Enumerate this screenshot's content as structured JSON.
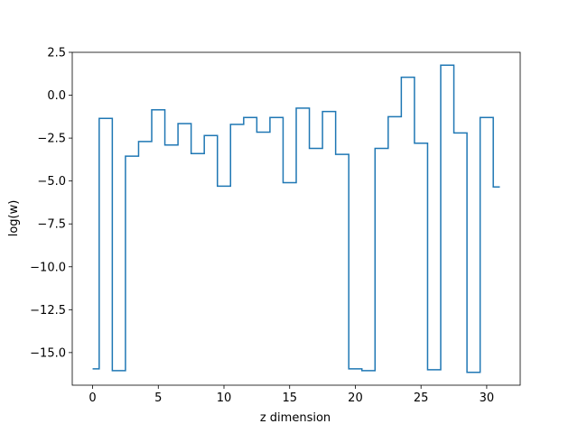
{
  "chart_data": {
    "type": "line",
    "drawstyle": "steps-mid",
    "title": "",
    "xlabel": "z dimension",
    "ylabel": "log(w)",
    "xlim": [
      -1.55,
      32.55
    ],
    "ylim": [
      -16.9,
      2.5
    ],
    "grid": false,
    "xticks": [
      0,
      5,
      10,
      15,
      20,
      25,
      30
    ],
    "xtick_labels": [
      "0",
      "5",
      "10",
      "15",
      "20",
      "25",
      "30"
    ],
    "yticks": [
      2.5,
      0.0,
      -2.5,
      -5.0,
      -7.5,
      -10.0,
      -12.5,
      -15.0
    ],
    "ytick_labels": [
      "2.5",
      "0.0",
      "−2.5",
      "−5.0",
      "−7.5",
      "−10.0",
      "−12.5",
      "−15.0"
    ],
    "series": [
      {
        "color": "#1f77b4",
        "x": [
          0,
          1,
          2,
          3,
          4,
          5,
          6,
          7,
          8,
          9,
          10,
          11,
          12,
          13,
          14,
          15,
          16,
          17,
          18,
          19,
          20,
          21,
          22,
          23,
          24,
          25,
          26,
          27,
          28,
          29,
          30,
          31
        ],
        "y": [
          -15.95,
          -1.35,
          -16.05,
          -3.55,
          -2.7,
          -0.85,
          -2.9,
          -1.65,
          -3.4,
          -2.35,
          -5.3,
          -1.7,
          -1.3,
          -2.15,
          -1.3,
          -5.1,
          -0.75,
          -3.1,
          -0.95,
          -3.45,
          -15.95,
          -16.05,
          -3.1,
          -1.25,
          1.05,
          -2.8,
          -16.0,
          1.75,
          -2.2,
          -16.15,
          -1.3,
          -5.35
        ]
      }
    ]
  }
}
